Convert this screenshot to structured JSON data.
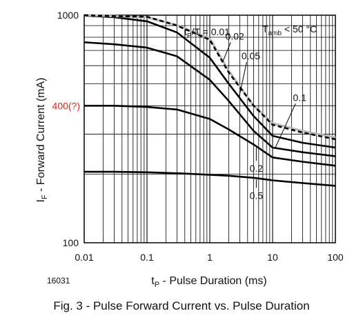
{
  "figure_id": "16031",
  "caption": "Fig. 3 - Pulse Forward Current vs. Pulse Duration",
  "colors": {
    "annotation": "#e0241b",
    "solid": "#000000",
    "dashed": "#000000",
    "gray": "#b8b8b8"
  },
  "chart_data": {
    "type": "line",
    "x_scale": "log",
    "y_scale": "log",
    "xlim": [
      0.01,
      100
    ],
    "ylim": [
      100,
      1000
    ],
    "grid": true,
    "xlabel": {
      "main": "t",
      "sub": "P",
      "rest": " - Pulse Duration (ms)"
    },
    "ylabel": {
      "main": "I",
      "sub": "F",
      "rest": " - Forward Current (mA)"
    },
    "x_ticks": [
      {
        "value": 0.01,
        "label": "0.01"
      },
      {
        "value": 0.1,
        "label": "0.1"
      },
      {
        "value": 1,
        "label": "1"
      },
      {
        "value": 10,
        "label": "10"
      },
      {
        "value": 100,
        "label": "100"
      }
    ],
    "y_ticks": [
      {
        "value": 100,
        "label": "100"
      },
      {
        "value": 1000,
        "label": "1000"
      }
    ],
    "y_annotation": {
      "value": 400,
      "label": "400(?)"
    },
    "legend_text": {
      "prefix": "t",
      "prefix_sub": "P",
      "rest": "/T = 0.01",
      "cond_main": "T",
      "cond_sub": "amb",
      "cond_rest": " < 50 °C"
    },
    "series": [
      {
        "name": "0.01",
        "style": "dashed",
        "x": [
          0.01,
          0.03,
          0.1,
          0.3,
          1,
          2,
          5,
          10,
          30,
          100
        ],
        "y": [
          1000,
          990,
          985,
          900,
          780,
          560,
          400,
          330,
          305,
          285
        ]
      },
      {
        "name": "0.02",
        "style": "gray",
        "x": [
          0.01,
          0.03,
          0.1,
          0.3,
          1,
          2,
          5,
          10,
          30,
          100
        ],
        "y": [
          1000,
          990,
          980,
          905,
          790,
          570,
          400,
          335,
          310,
          290
        ]
      },
      {
        "name": "0.05",
        "style": "solid",
        "x": [
          0.01,
          0.03,
          0.1,
          0.3,
          1,
          2,
          5,
          10,
          30,
          100
        ],
        "y": [
          995,
          980,
          940,
          840,
          650,
          500,
          360,
          295,
          275,
          262
        ]
      },
      {
        "name": "0.1",
        "style": "solid",
        "x": [
          0.01,
          0.03,
          0.1,
          0.3,
          1,
          2,
          5,
          10,
          30,
          100
        ],
        "y": [
          760,
          745,
          720,
          660,
          520,
          420,
          310,
          262,
          250,
          240
        ]
      },
      {
        "name": "0.2",
        "style": "solid",
        "x": [
          0.01,
          0.03,
          0.1,
          0.3,
          1,
          2,
          5,
          10,
          30,
          100
        ],
        "y": [
          400,
          400,
          395,
          385,
          350,
          315,
          270,
          237,
          227,
          218
        ]
      },
      {
        "name": "0.5",
        "style": "solid",
        "x": [
          0.01,
          0.03,
          0.1,
          0.3,
          1,
          2,
          5,
          10,
          30,
          100
        ],
        "y": [
          205,
          205,
          204,
          202,
          199,
          197,
          193,
          188,
          183,
          178
        ]
      }
    ],
    "curve_labels": [
      {
        "series": "0.02",
        "x": 2.5,
        "y": 780,
        "text": "0.02"
      },
      {
        "series": "0.05",
        "x": 4.5,
        "y": 640,
        "text": "0.05"
      },
      {
        "series": "0.1",
        "x": 27,
        "y": 420,
        "text": "0.1"
      },
      {
        "series": "0.2",
        "x": 5.5,
        "y": 205,
        "text": "0.2"
      },
      {
        "series": "0.5",
        "x": 5.5,
        "y": 156,
        "text": "0.5"
      }
    ]
  }
}
